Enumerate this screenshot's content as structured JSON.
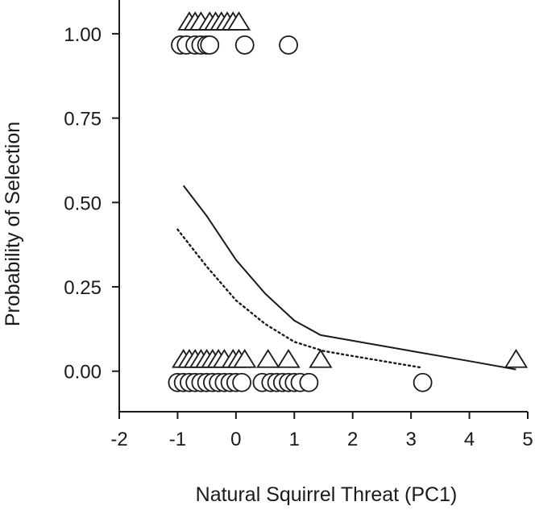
{
  "chart_data": {
    "type": "scatter",
    "title": "",
    "xlabel": "Natural Squirrel Threat (PC1)",
    "ylabel": "Probability of Selection",
    "xlim": [
      -2,
      5
    ],
    "ylim": [
      -0.12,
      1.1
    ],
    "x_ticks": [
      -2,
      -1,
      0,
      1,
      2,
      3,
      4,
      5
    ],
    "x_tick_labels": [
      "-2",
      "-1",
      "0",
      "1",
      "2",
      "3",
      "4",
      "5"
    ],
    "y_ticks": [
      0,
      0.25,
      0.5,
      0.75,
      1.0
    ],
    "y_tick_labels": [
      "0.00",
      "0.25",
      "0.50",
      "0.75",
      "1.00"
    ],
    "grid": false,
    "legend": "none",
    "series": [
      {
        "marker": "triangle",
        "points": [
          {
            "x": -0.8,
            "y": 1.0
          },
          {
            "x": -0.7,
            "y": 1.0
          },
          {
            "x": -0.6,
            "y": 1.0
          },
          {
            "x": -0.45,
            "y": 1.0
          },
          {
            "x": -0.35,
            "y": 1.0
          },
          {
            "x": -0.25,
            "y": 1.0
          },
          {
            "x": -0.15,
            "y": 1.0
          },
          {
            "x": -0.05,
            "y": 1.0
          },
          {
            "x": 0.05,
            "y": 1.0
          },
          {
            "x": -0.9,
            "y": 0.0
          },
          {
            "x": -0.8,
            "y": 0.0
          },
          {
            "x": -0.7,
            "y": 0.0
          },
          {
            "x": -0.6,
            "y": 0.0
          },
          {
            "x": -0.5,
            "y": 0.0
          },
          {
            "x": -0.4,
            "y": 0.0
          },
          {
            "x": -0.3,
            "y": 0.0
          },
          {
            "x": -0.2,
            "y": 0.0
          },
          {
            "x": -0.05,
            "y": 0.0
          },
          {
            "x": 0.05,
            "y": 0.0
          },
          {
            "x": 0.15,
            "y": 0.0
          },
          {
            "x": 0.55,
            "y": 0.0
          },
          {
            "x": 0.9,
            "y": 0.0
          },
          {
            "x": 1.45,
            "y": 0.0
          },
          {
            "x": 4.8,
            "y": 0.0
          }
        ]
      },
      {
        "marker": "circle",
        "points": [
          {
            "x": -0.95,
            "y": 1.0
          },
          {
            "x": -0.85,
            "y": 1.0
          },
          {
            "x": -0.7,
            "y": 1.0
          },
          {
            "x": -0.6,
            "y": 1.0
          },
          {
            "x": -0.5,
            "y": 1.0
          },
          {
            "x": -0.45,
            "y": 1.0
          },
          {
            "x": 0.15,
            "y": 1.0
          },
          {
            "x": 0.9,
            "y": 1.0
          },
          {
            "x": -1.0,
            "y": 0.0
          },
          {
            "x": -0.9,
            "y": 0.0
          },
          {
            "x": -0.8,
            "y": 0.0
          },
          {
            "x": -0.7,
            "y": 0.0
          },
          {
            "x": -0.6,
            "y": 0.0
          },
          {
            "x": -0.5,
            "y": 0.0
          },
          {
            "x": -0.4,
            "y": 0.0
          },
          {
            "x": -0.3,
            "y": 0.0
          },
          {
            "x": -0.2,
            "y": 0.0
          },
          {
            "x": -0.1,
            "y": 0.0
          },
          {
            "x": 0.0,
            "y": 0.0
          },
          {
            "x": 0.1,
            "y": 0.0
          },
          {
            "x": 0.45,
            "y": 0.0
          },
          {
            "x": 0.6,
            "y": 0.0
          },
          {
            "x": 0.7,
            "y": 0.0
          },
          {
            "x": 0.8,
            "y": 0.0
          },
          {
            "x": 0.9,
            "y": 0.0
          },
          {
            "x": 1.0,
            "y": 0.0
          },
          {
            "x": 1.1,
            "y": 0.0
          },
          {
            "x": 1.25,
            "y": 0.0
          },
          {
            "x": 3.2,
            "y": 0.0
          }
        ]
      }
    ],
    "fitted_lines": [
      {
        "style": "solid",
        "points": [
          {
            "x": -0.9,
            "y": 0.55
          },
          {
            "x": -0.5,
            "y": 0.46
          },
          {
            "x": 0.0,
            "y": 0.33
          },
          {
            "x": 0.5,
            "y": 0.23
          },
          {
            "x": 1.0,
            "y": 0.15
          },
          {
            "x": 1.45,
            "y": 0.107
          },
          {
            "x": 3.0,
            "y": 0.06
          },
          {
            "x": 4.0,
            "y": 0.03
          },
          {
            "x": 4.8,
            "y": 0.005
          }
        ]
      },
      {
        "style": "dotted",
        "points": [
          {
            "x": -1.0,
            "y": 0.42
          },
          {
            "x": -0.5,
            "y": 0.31
          },
          {
            "x": 0.0,
            "y": 0.21
          },
          {
            "x": 0.5,
            "y": 0.14
          },
          {
            "x": 1.0,
            "y": 0.087
          },
          {
            "x": 1.5,
            "y": 0.06
          },
          {
            "x": 2.0,
            "y": 0.045
          },
          {
            "x": 3.2,
            "y": 0.01
          }
        ]
      }
    ]
  }
}
